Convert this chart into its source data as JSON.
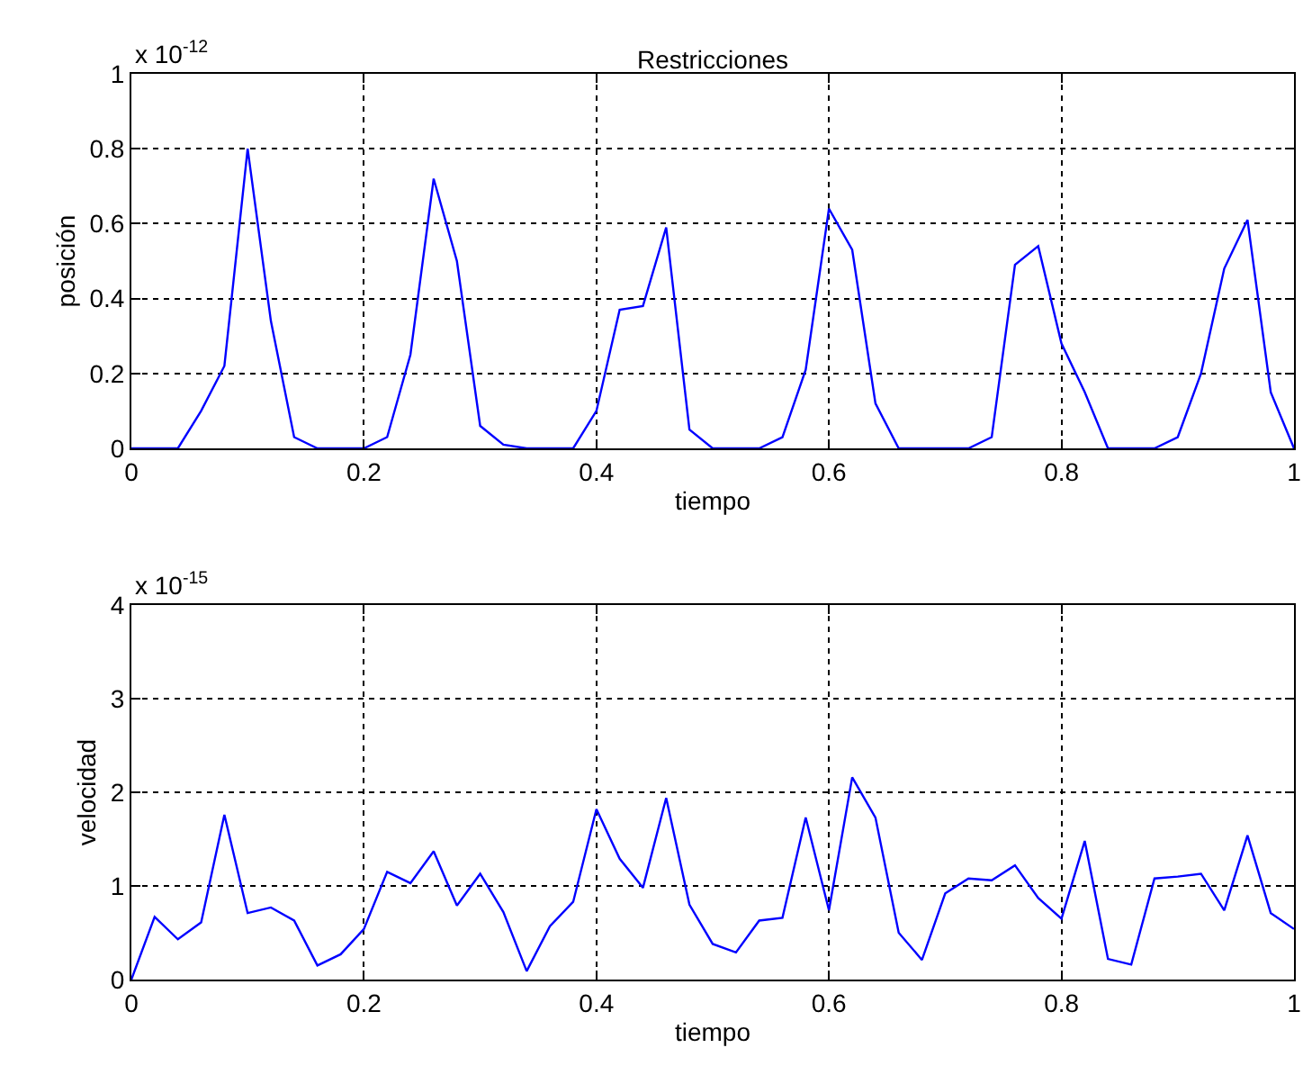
{
  "chart_data": [
    {
      "type": "line",
      "title": "Restricciones",
      "xlabel": "tiempo",
      "ylabel": "posición",
      "annotations": [
        "x 10$^{-12}$"
      ],
      "color": "#0000ff",
      "grid": true,
      "x": [
        0,
        0.02,
        0.04,
        0.06,
        0.08,
        0.1,
        0.12,
        0.14,
        0.16,
        0.18,
        0.2,
        0.22,
        0.24,
        0.26,
        0.28,
        0.3,
        0.32,
        0.34,
        0.36,
        0.38,
        0.4,
        0.42,
        0.44,
        0.46,
        0.48,
        0.5,
        0.52,
        0.54,
        0.56,
        0.58,
        0.6,
        0.62,
        0.64,
        0.66,
        0.68,
        0.7,
        0.72,
        0.74,
        0.76,
        0.78,
        0.8,
        0.82,
        0.84,
        0.86,
        0.88,
        0.9,
        0.92,
        0.94,
        0.96,
        0.98,
        1
      ],
      "values": [
        0,
        0,
        0,
        0.1,
        0.22,
        0.8,
        0.34,
        0.03,
        0,
        0,
        0,
        0.03,
        0.25,
        0.72,
        0.5,
        0.06,
        0.01,
        0,
        0,
        0,
        0.1,
        0.37,
        0.38,
        0.59,
        0.05,
        0,
        0,
        0,
        0.03,
        0.21,
        0.64,
        0.53,
        0.12,
        0,
        0,
        0,
        0,
        0.03,
        0.49,
        0.54,
        0.28,
        0.15,
        0,
        0,
        0,
        0.03,
        0.2,
        0.48,
        0.61,
        0.15,
        0
      ],
      "xlim": [
        0,
        1
      ],
      "xticks": [
        0,
        0.2,
        0.4,
        0.6,
        0.8,
        1
      ],
      "ylim": [
        0,
        1
      ],
      "yticks": [
        0,
        0.2,
        0.4,
        0.6,
        0.8,
        1
      ]
    },
    {
      "type": "line",
      "xlabel": "tiempo",
      "ylabel": "velocidad",
      "annotations": [
        "x 10$^{-15}$"
      ],
      "color": "#0000ff",
      "grid": true,
      "x": [
        0,
        0.02,
        0.04,
        0.06,
        0.08,
        0.1,
        0.12,
        0.14,
        0.16,
        0.18,
        0.2,
        0.22,
        0.24,
        0.26,
        0.28,
        0.3,
        0.32,
        0.34,
        0.36,
        0.38,
        0.4,
        0.42,
        0.44,
        0.46,
        0.48,
        0.5,
        0.52,
        0.54,
        0.56,
        0.58,
        0.6,
        0.62,
        0.64,
        0.66,
        0.68,
        0.7,
        0.72,
        0.74,
        0.76,
        0.78,
        0.8,
        0.82,
        0.84,
        0.86,
        0.88,
        0.9,
        0.92,
        0.94,
        0.96,
        0.98,
        1
      ],
      "values": [
        0,
        0.67,
        0.43,
        0.61,
        1.76,
        0.71,
        0.77,
        0.63,
        0.15,
        0.27,
        0.54,
        1.15,
        1.03,
        1.37,
        0.79,
        1.13,
        0.72,
        0.09,
        0.57,
        0.83,
        1.82,
        1.29,
        0.98,
        1.94,
        0.8,
        0.38,
        0.29,
        0.63,
        0.66,
        1.73,
        0.74,
        2.16,
        1.73,
        0.5,
        0.21,
        0.92,
        1.08,
        1.06,
        1.22,
        0.87,
        0.65,
        1.48,
        0.22,
        0.16,
        1.08,
        1.1,
        1.13,
        0.74,
        1.54,
        0.71,
        0.54
      ],
      "xlim": [
        0,
        1
      ],
      "xticks": [
        0,
        0.2,
        0.4,
        0.6,
        0.8,
        1
      ],
      "ylim": [
        0,
        4
      ],
      "yticks": [
        0,
        1,
        2,
        3,
        4
      ]
    }
  ]
}
